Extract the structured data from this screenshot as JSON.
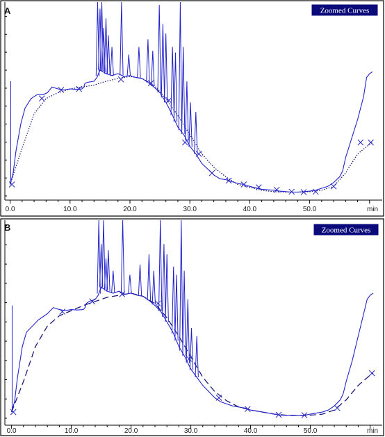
{
  "legend_badge": "Zoomed Curves",
  "colors": {
    "signal": "#2222cc",
    "baseline": "#1a1a7a",
    "marker": "#2a2ac0",
    "badge_bg": "#0a0a7a",
    "axis": "#000000"
  },
  "chart_data": [
    {
      "type": "line",
      "panel": "A",
      "title": "",
      "badge": "Zoomed Curves",
      "xlabel": "min",
      "x_ticks": [
        "0.0",
        "10.0",
        "20.0",
        "30.0",
        "40.0",
        "50.0"
      ],
      "x_tick_values": [
        0,
        10,
        20,
        30,
        40,
        50
      ],
      "xlim": [
        -0.7,
        60.5
      ],
      "ylim": [
        0,
        100
      ],
      "baseline_style": "dotted",
      "series": [
        {
          "role": "signal",
          "points": [
            [
              0,
              6
            ],
            [
              0.5,
              12
            ],
            [
              1,
              24
            ],
            [
              1.8,
              38
            ],
            [
              2.5,
              46
            ],
            [
              3.5,
              51
            ],
            [
              4.5,
              53
            ],
            [
              5.5,
              53
            ],
            [
              6.2,
              54
            ],
            [
              7,
              57
            ],
            [
              8,
              56
            ],
            [
              9,
              55.5
            ],
            [
              10,
              56
            ],
            [
              11,
              55.8
            ],
            [
              12,
              56
            ],
            [
              12.3,
              57
            ],
            [
              12.5,
              59
            ],
            [
              13,
              59.5
            ],
            [
              14,
              60
            ],
            [
              14.5,
              62
            ],
            [
              15,
              66
            ],
            [
              16,
              64
            ],
            [
              17,
              63
            ],
            [
              18,
              64
            ],
            [
              19,
              62.5
            ],
            [
              20,
              63
            ],
            [
              21,
              62
            ],
            [
              22,
              61.5
            ],
            [
              23,
              59.5
            ],
            [
              24,
              57
            ],
            [
              25,
              54
            ],
            [
              26,
              49
            ],
            [
              27,
              43
            ],
            [
              28,
              36
            ],
            [
              29,
              32
            ],
            [
              30,
              26
            ],
            [
              31,
              22
            ],
            [
              32,
              17
            ],
            [
              33,
              14
            ],
            [
              34,
              11
            ],
            [
              35,
              9
            ],
            [
              36,
              8.5
            ],
            [
              37,
              7.5
            ],
            [
              38,
              6.5
            ],
            [
              39,
              6
            ],
            [
              40,
              5
            ],
            [
              42,
              3.5
            ],
            [
              44,
              3
            ],
            [
              45,
              2.5
            ],
            [
              47,
              2
            ],
            [
              48,
              2
            ],
            [
              49,
              2.2
            ],
            [
              50,
              2.5
            ],
            [
              51,
              3
            ],
            [
              52,
              4
            ],
            [
              53,
              5
            ],
            [
              54,
              7
            ],
            [
              55,
              10
            ],
            [
              55.5,
              13
            ],
            [
              56,
              20
            ],
            [
              57,
              30
            ],
            [
              58,
              40
            ],
            [
              59,
              52
            ],
            [
              59.5,
              62
            ],
            [
              60,
              64
            ],
            [
              60.5,
              65
            ]
          ]
        },
        {
          "role": "baseline",
          "points": [
            [
              0,
              6
            ],
            [
              2,
              25
            ],
            [
              4,
              43
            ],
            [
              6,
              51
            ],
            [
              8,
              54
            ],
            [
              10,
              56
            ],
            [
              12,
              57
            ],
            [
              14,
              58
            ],
            [
              16,
              60
            ],
            [
              18,
              61.5
            ],
            [
              20,
              62.5
            ],
            [
              22,
              61.5
            ],
            [
              24,
              58
            ],
            [
              26,
              51
            ],
            [
              28,
              42
            ],
            [
              30,
              32
            ],
            [
              32,
              22
            ],
            [
              34,
              15
            ],
            [
              36,
              10
            ],
            [
              38,
              6
            ],
            [
              40,
              4.5
            ],
            [
              42,
              3
            ],
            [
              44,
              2.2
            ],
            [
              46,
              2
            ],
            [
              48,
              2
            ],
            [
              50,
              2.2
            ],
            [
              52,
              3
            ],
            [
              54,
              5
            ],
            [
              56,
              12
            ],
            [
              58,
              22
            ],
            [
              60,
              27
            ],
            [
              60.5,
              28
            ]
          ]
        }
      ],
      "spikes": [
        [
          14.6,
          130
        ],
        [
          15.0,
          98
        ],
        [
          15.3,
          115
        ],
        [
          15.6,
          88
        ],
        [
          16.0,
          93
        ],
        [
          16.4,
          84
        ],
        [
          17.0,
          78
        ],
        [
          18.6,
          105
        ],
        [
          19.8,
          74
        ],
        [
          21.5,
          78
        ],
        [
          23.0,
          82
        ],
        [
          23.8,
          76
        ],
        [
          24.9,
          100
        ],
        [
          25.5,
          90
        ],
        [
          26.0,
          85
        ],
        [
          27.1,
          78
        ],
        [
          27.6,
          75
        ],
        [
          28.4,
          115
        ],
        [
          28.9,
          78
        ],
        [
          29.5,
          60
        ],
        [
          30.1,
          49
        ],
        [
          31.0,
          44
        ]
      ],
      "markers": [
        [
          0.3,
          6
        ],
        [
          5.3,
          51
        ],
        [
          8.5,
          55.5
        ],
        [
          11.5,
          56
        ],
        [
          18.5,
          61
        ],
        [
          23.5,
          59
        ],
        [
          26.5,
          50
        ],
        [
          29.2,
          28
        ],
        [
          31.5,
          22
        ],
        [
          33.7,
          12
        ],
        [
          36.5,
          8
        ],
        [
          39,
          6
        ],
        [
          41.5,
          4.5
        ],
        [
          44.5,
          3.2
        ],
        [
          47,
          2.2
        ],
        [
          49,
          2
        ],
        [
          51,
          2.2
        ],
        [
          54,
          5
        ],
        [
          58.5,
          28
        ],
        [
          60.2,
          28
        ]
      ]
    },
    {
      "type": "line",
      "panel": "B",
      "title": "",
      "badge": "Zoomed Curves",
      "xlabel": "min",
      "x_ticks": [
        "0.0",
        "10.0",
        "20.0",
        "30.0",
        "40.0",
        "50.0"
      ],
      "x_tick_values": [
        0,
        10,
        20,
        30,
        40,
        50
      ],
      "xlim": [
        -0.7,
        60.5
      ],
      "ylim": [
        0,
        100
      ],
      "baseline_style": "dashed",
      "series": [
        {
          "role": "signal",
          "points": [
            [
              0,
              3
            ],
            [
              0.5,
              8
            ],
            [
              1,
              20
            ],
            [
              1.8,
              35
            ],
            [
              2.5,
              42
            ],
            [
              3.5,
              45
            ],
            [
              4.5,
              48
            ],
            [
              5.5,
              50
            ],
            [
              6,
              51
            ],
            [
              7,
              54
            ],
            [
              8,
              53
            ],
            [
              9,
              52.5
            ],
            [
              10,
              53
            ],
            [
              11,
              52.8
            ],
            [
              12,
              53
            ],
            [
              12.3,
              54
            ],
            [
              12.5,
              56
            ],
            [
              13,
              57
            ],
            [
              14,
              58
            ],
            [
              14.5,
              60
            ],
            [
              15,
              64
            ],
            [
              16,
              62
            ],
            [
              17,
              61
            ],
            [
              18,
              62
            ],
            [
              19,
              60.5
            ],
            [
              20,
              61
            ],
            [
              21,
              60
            ],
            [
              22,
              59.5
            ],
            [
              23,
              57.5
            ],
            [
              24,
              55
            ],
            [
              25,
              52
            ],
            [
              26,
              47
            ],
            [
              27,
              42
            ],
            [
              28,
              35
            ],
            [
              29,
              30
            ],
            [
              30,
              24
            ],
            [
              31,
              20
            ],
            [
              32,
              16
            ],
            [
              33,
              13
            ],
            [
              34,
              10
            ],
            [
              35,
              8
            ],
            [
              36,
              7
            ],
            [
              37,
              6
            ],
            [
              38,
              5.5
            ],
            [
              39,
              5
            ],
            [
              40,
              4
            ],
            [
              42,
              3
            ],
            [
              44,
              2
            ],
            [
              45,
              1.5
            ],
            [
              47,
              1.3
            ],
            [
              48,
              1.3
            ],
            [
              49,
              1.5
            ],
            [
              50,
              2
            ],
            [
              51,
              2.5
            ],
            [
              52,
              3
            ],
            [
              53,
              4
            ],
            [
              54,
              6
            ],
            [
              55,
              9
            ],
            [
              55.5,
              12
            ],
            [
              56,
              18
            ],
            [
              57,
              28
            ],
            [
              58,
              40
            ],
            [
              59,
              52
            ],
            [
              59.5,
              58
            ],
            [
              60,
              60
            ],
            [
              60.5,
              61
            ]
          ]
        },
        {
          "role": "baseline",
          "points": [
            [
              0,
              3
            ],
            [
              2,
              18
            ],
            [
              4,
              35
            ],
            [
              6,
              45
            ],
            [
              8,
              50
            ],
            [
              10,
              52.5
            ],
            [
              12,
              55
            ],
            [
              14,
              57
            ],
            [
              16,
              59
            ],
            [
              18,
              60
            ],
            [
              20,
              61
            ],
            [
              22,
              59.5
            ],
            [
              24,
              56
            ],
            [
              26,
              49
            ],
            [
              28,
              40
            ],
            [
              30,
              30
            ],
            [
              32,
              20
            ],
            [
              34,
              13
            ],
            [
              36,
              8.5
            ],
            [
              38,
              5.5
            ],
            [
              40,
              4
            ],
            [
              42,
              3
            ],
            [
              44,
              2
            ],
            [
              46,
              1.5
            ],
            [
              48,
              1.3
            ],
            [
              50,
              1.5
            ],
            [
              52,
              2
            ],
            [
              54,
              4
            ],
            [
              56,
              9
            ],
            [
              58,
              16
            ],
            [
              60,
              21
            ],
            [
              60.5,
              22
            ]
          ]
        }
      ],
      "spikes": [
        [
          14.6,
          100
        ],
        [
          15.0,
          85
        ],
        [
          15.4,
          98
        ],
        [
          15.8,
          78
        ],
        [
          16.2,
          82
        ],
        [
          17.0,
          72
        ],
        [
          18.6,
          100
        ],
        [
          19.8,
          70
        ],
        [
          21.5,
          75
        ],
        [
          23.0,
          80
        ],
        [
          23.8,
          72
        ],
        [
          24.9,
          100
        ],
        [
          25.5,
          85
        ],
        [
          26.0,
          80
        ],
        [
          27.1,
          74
        ],
        [
          27.6,
          70
        ],
        [
          28.4,
          100
        ],
        [
          28.9,
          72
        ],
        [
          29.5,
          58
        ],
        [
          30.1,
          44
        ],
        [
          31.0,
          40
        ]
      ],
      "markers": [
        [
          0.3,
          3
        ],
        [
          8.5,
          52
        ],
        [
          13.5,
          57
        ],
        [
          18.5,
          60.5
        ],
        [
          24.5,
          56
        ],
        [
          29.7,
          29
        ],
        [
          34.7,
          10
        ],
        [
          39.5,
          4.5
        ],
        [
          44.7,
          1.7
        ],
        [
          49,
          1.5
        ],
        [
          54.5,
          5
        ],
        [
          60.3,
          22
        ]
      ]
    }
  ]
}
